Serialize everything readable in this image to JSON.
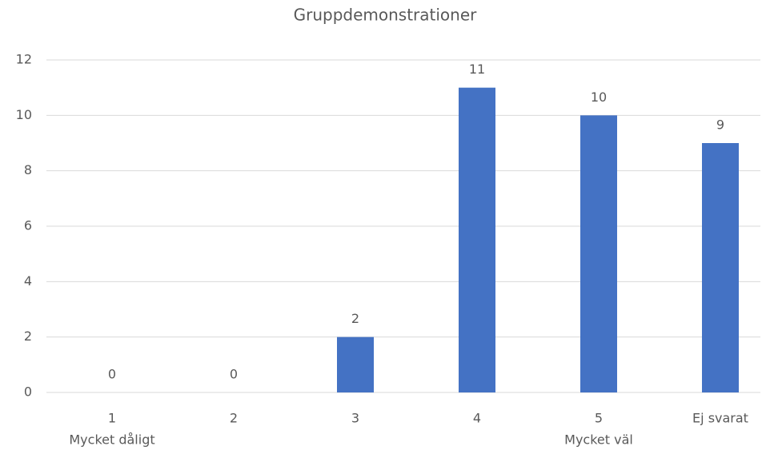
{
  "chart_data": {
    "type": "bar",
    "title": "Gruppdemonstrationer",
    "categories": [
      "1",
      "2",
      "3",
      "4",
      "5",
      "Ej svarat"
    ],
    "category_sublabels": [
      "Mycket dåligt",
      null,
      null,
      null,
      "Mycket väl",
      null
    ],
    "values": [
      0,
      0,
      2,
      11,
      10,
      9
    ],
    "color": "#4472c4",
    "ylim": [
      0,
      12
    ],
    "yticks": [
      0,
      2,
      4,
      6,
      8,
      10,
      12
    ],
    "grid": true,
    "data_labels": true
  }
}
